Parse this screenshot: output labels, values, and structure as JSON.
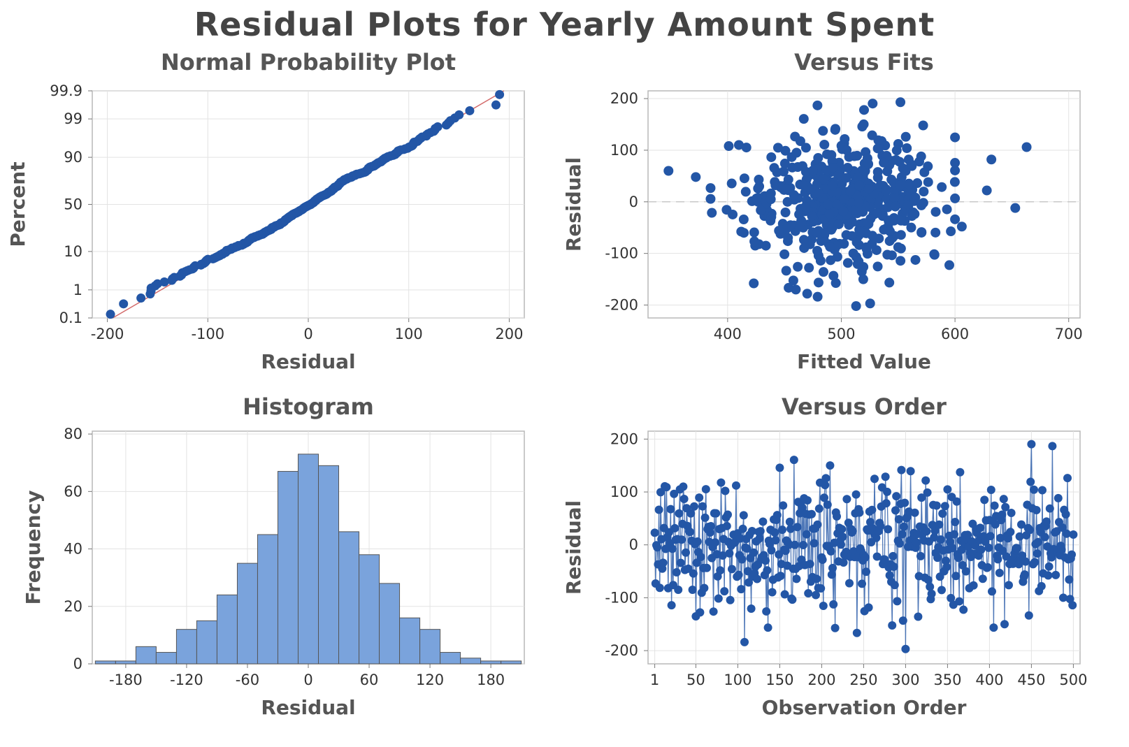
{
  "title": "Residual Plots for Yearly Amount Spent",
  "colors": {
    "marker": "#2356a6",
    "bar_fill": "#7aa3dc",
    "bar_edge": "#555555",
    "ref_line": "#d36a6a",
    "grid": "#e3e3e3",
    "frame": "#b8b8b8",
    "zero_line": "#c8c8c8"
  },
  "chart_data": [
    {
      "id": "normal",
      "type": "scatter",
      "title": "Normal Probability Plot",
      "xlabel": "Residual",
      "ylabel": "Percent",
      "xlim": [
        -215,
        215
      ],
      "y_scale": "normal-probability",
      "xticks": [
        -200,
        -100,
        0,
        100,
        200
      ],
      "yticks": [
        0.1,
        1,
        10,
        50,
        90,
        99,
        99.9
      ],
      "ytick_labels": [
        "0.1",
        "1",
        "10",
        "50",
        "90",
        "99",
        "99.9"
      ],
      "reference_line": true,
      "grid": true,
      "n_points": 500
    },
    {
      "id": "fits",
      "type": "scatter",
      "title": "Versus Fits",
      "xlabel": "Fitted Value",
      "ylabel": "Residual",
      "xlim": [
        330,
        710
      ],
      "ylim": [
        -225,
        215
      ],
      "xticks": [
        400,
        500,
        600,
        700
      ],
      "yticks": [
        -200,
        -100,
        0,
        100,
        200
      ],
      "zero_line": true,
      "grid": true,
      "highlight_points": [
        [
          348,
          60
        ],
        [
          372,
          48
        ],
        [
          401,
          108
        ],
        [
          423,
          -158
        ],
        [
          460,
          -170
        ],
        [
          470,
          -178
        ],
        [
          513,
          -202
        ],
        [
          520,
          178
        ],
        [
          552,
          193
        ],
        [
          632,
          82
        ],
        [
          663,
          106
        ],
        [
          653,
          -12
        ],
        [
          628,
          22
        ],
        [
          606,
          -48
        ],
        [
          572,
          148
        ]
      ]
    },
    {
      "id": "hist",
      "type": "bar",
      "title": "Histogram",
      "xlabel": "Residual",
      "ylabel": "Frequency",
      "bin_width": 20,
      "bin_starts": [
        -210,
        -190,
        -170,
        -150,
        -130,
        -110,
        -90,
        -70,
        -50,
        -30,
        -10,
        10,
        30,
        50,
        70,
        90,
        110,
        130,
        150,
        170,
        190
      ],
      "values": [
        1,
        1,
        6,
        4,
        12,
        15,
        24,
        35,
        45,
        67,
        73,
        69,
        46,
        38,
        28,
        16,
        12,
        4,
        2,
        1,
        1
      ],
      "xlim": [
        -213,
        213
      ],
      "ylim": [
        0,
        81
      ],
      "xticks": [
        -180,
        -120,
        -60,
        0,
        60,
        120,
        180
      ],
      "yticks": [
        0,
        20,
        40,
        60,
        80
      ],
      "grid": true
    },
    {
      "id": "order",
      "type": "line",
      "title": "Versus Order",
      "xlabel": "Observation Order",
      "ylabel": "Residual",
      "xlim": [
        -7,
        508
      ],
      "ylim": [
        -225,
        215
      ],
      "xticks": [
        1,
        50,
        100,
        150,
        200,
        250,
        300,
        350,
        400,
        450,
        500
      ],
      "yticks": [
        -200,
        -100,
        0,
        100,
        200
      ],
      "n_points": 500,
      "grid": true
    }
  ]
}
